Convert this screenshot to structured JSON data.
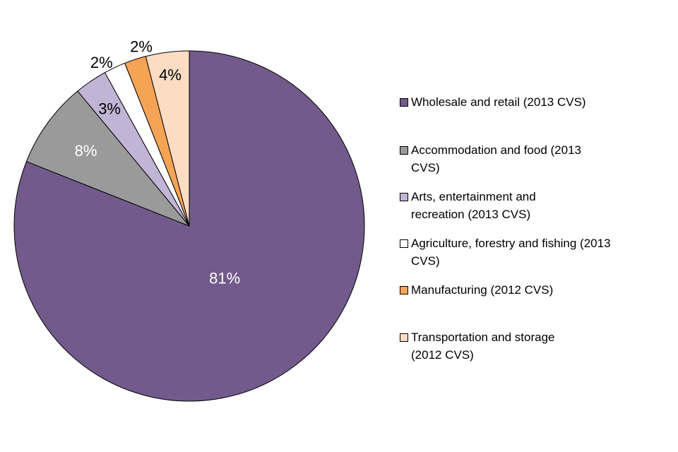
{
  "chart_data": {
    "type": "pie",
    "title": "",
    "start": "12 o'clock",
    "direction": "clockwise",
    "slices": [
      {
        "label": "Wholesale and retail (2013 CVS)",
        "value": 81,
        "display": "81%",
        "color": "#725A8C",
        "label_color": "#ffffff"
      },
      {
        "label": "Accommodation and food (2013 CVS)",
        "value": 8,
        "display": "8%",
        "color": "#9A9A9A",
        "label_color": "#ffffff"
      },
      {
        "label": "Arts, entertainment and recreation (2013 CVS)",
        "value": 3,
        "display": "3%",
        "color": "#C2B4D5",
        "label_color": "#000000"
      },
      {
        "label": "Agriculture, forestry and fishing (2013 CVS)",
        "value": 2,
        "display": "2%",
        "color": "#ffffff",
        "label_color": "#000000"
      },
      {
        "label": "Manufacturing (2012 CVS)",
        "value": 2,
        "display": "2%",
        "color": "#F5A455",
        "label_color": "#000000"
      },
      {
        "label": "Transportation and storage (2012 CVS)",
        "value": 4,
        "display": "4%",
        "color": "#FCDDC4",
        "label_color": "#000000"
      }
    ],
    "legend": {
      "placement": "right",
      "items": [
        {
          "text": "Wholesale and retail (2013 CVS)",
          "color": "#725A8C"
        },
        {
          "text": "Accommodation and food (2013 CVS)",
          "color": "#9A9A9A"
        },
        {
          "text": "Arts, entertainment and recreation (2013 CVS)",
          "color": "#C2B4D5"
        },
        {
          "text": "Agriculture, forestry and fishing (2013 CVS)",
          "color": "#ffffff"
        },
        {
          "text": "Manufacturing (2012 CVS)",
          "color": "#F5A455"
        },
        {
          "text": "Transportation and storage (2012 CVS)",
          "color": "#FCDDC4"
        }
      ]
    }
  }
}
